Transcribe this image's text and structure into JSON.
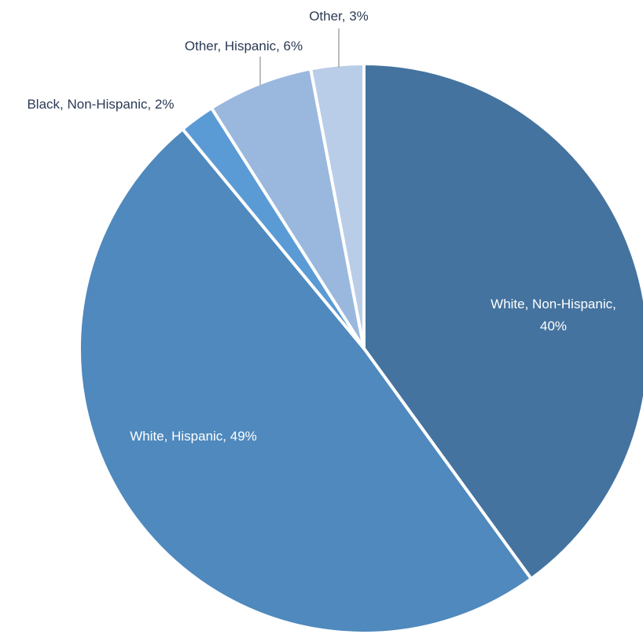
{
  "chart_data": {
    "type": "pie",
    "title": "",
    "slices": [
      {
        "category": "White, Non-Hispanic",
        "value": 40,
        "label": "White, Non-Hispanic, 40%",
        "color": "#44739f"
      },
      {
        "category": "White, Hispanic",
        "value": 49,
        "label": "White, Hispanic, 49%",
        "color": "#4f89bd"
      },
      {
        "category": "Black, Non-Hispanic",
        "value": 2,
        "label": "Black, Non-Hispanic, 2%",
        "color": "#5b9bd5"
      },
      {
        "category": "Other, Hispanic",
        "value": 6,
        "label": "Other, Hispanic, 6%",
        "color": "#9ab8de"
      },
      {
        "category": "Other",
        "value": 3,
        "label": "Other, 3%",
        "color": "#b9cde8"
      }
    ],
    "legend": "none",
    "label_position": "mixed (inside for large slices, outside with leader lines for small slices)"
  }
}
